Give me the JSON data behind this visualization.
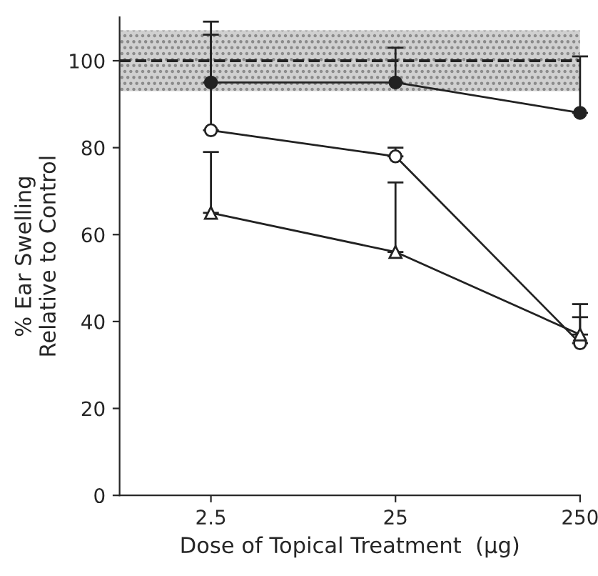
{
  "chart_data": {
    "type": "line",
    "xlabel": "Dose of Topical Treatment  (μg)",
    "ylabel": "% Ear Swelling\nRelative to Control",
    "log": "x",
    "x": [
      2.5,
      25,
      250
    ],
    "xlim": [
      0.8,
      250
    ],
    "xticks": [
      2.5,
      25,
      250
    ],
    "ylim": [
      0,
      110
    ],
    "yticks": [
      0,
      20,
      40,
      60,
      80,
      100
    ],
    "grid": false,
    "legend": false,
    "series": [
      {
        "color": "#222222",
        "marker": "circle",
        "values": [
          95,
          95,
          88
        ],
        "errors": [
          [
            95,
            109
          ],
          [
            95,
            103
          ],
          [
            88,
            101
          ]
        ]
      },
      {
        "color": "#222222",
        "marker": "circle",
        "values": [
          84,
          78,
          35
        ],
        "errors": [
          [
            84,
            106
          ],
          [
            78,
            80
          ],
          [
            35,
            41
          ]
        ]
      },
      {
        "color": "#222222",
        "marker": "triangle",
        "values": [
          65,
          56,
          37
        ],
        "errors": [
          [
            65,
            79
          ],
          [
            56,
            72
          ],
          [
            37,
            44
          ]
        ]
      }
    ],
    "ref_lines": [
      {
        "axis": "y",
        "value": 100,
        "color": "#222222",
        "line_style": "dashed"
      }
    ],
    "bands": [
      {
        "axis": "y",
        "from": 93,
        "to": 107,
        "color": "#d0d0d0"
      }
    ]
  }
}
